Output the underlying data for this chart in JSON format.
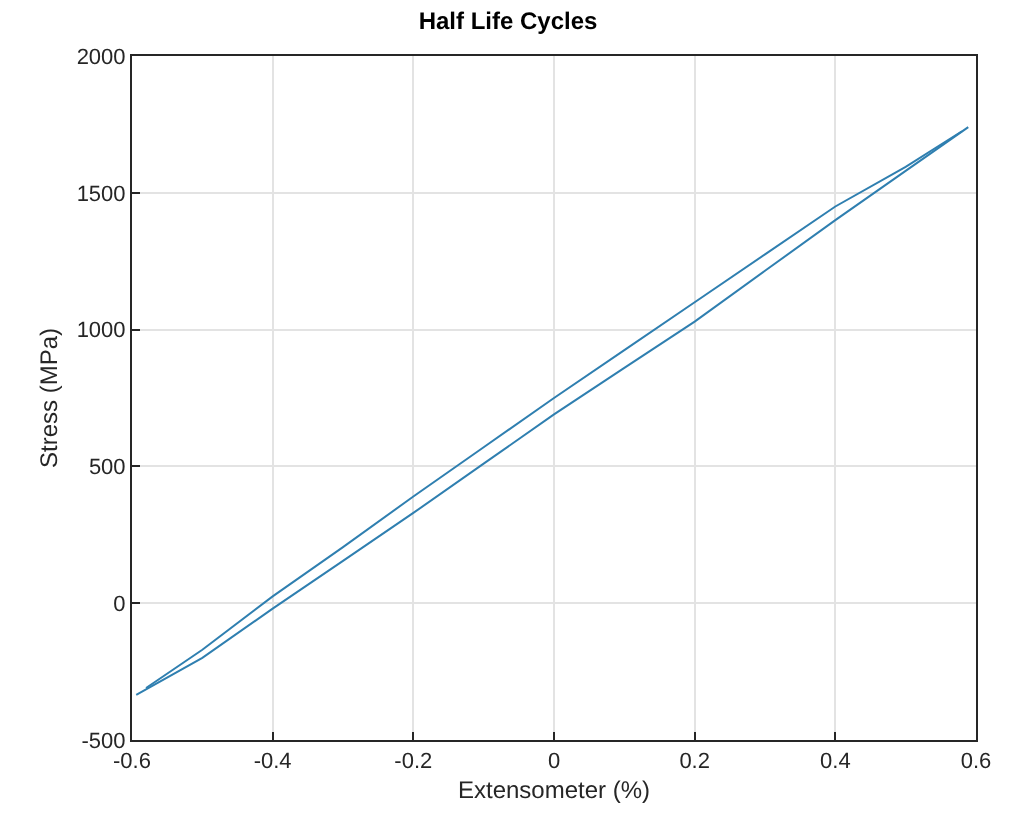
{
  "chart_data": {
    "type": "line",
    "title": "Half Life Cycles",
    "xlabel": "Extensometer (%)",
    "ylabel": "Stress (MPa)",
    "series": [
      {
        "color": "#2f7fb0",
        "x": [
          -0.594,
          -0.5,
          -0.4,
          -0.3,
          -0.2,
          -0.1,
          0,
          0.1,
          0.2,
          0.3,
          0.4,
          0.5,
          0.589
        ],
        "values": [
          -335,
          -200,
          -20,
          155,
          330,
          510,
          690,
          860,
          1029,
          1215,
          1400,
          1580,
          1740
        ]
      },
      {
        "color": "#2f7fb0",
        "x": [
          -0.58,
          -0.5,
          -0.4,
          -0.3,
          -0.2,
          -0.1,
          0,
          0.1,
          0.2,
          0.3,
          0.4,
          0.5,
          0.58
        ],
        "values": [
          -310,
          -170,
          25,
          205,
          390,
          570,
          750,
          925,
          1100,
          1275,
          1450,
          1595,
          1725
        ]
      }
    ],
    "xlim": [
      -0.6,
      0.6
    ],
    "ylim": [
      -500,
      2000
    ],
    "xticks": [
      -0.6,
      -0.4,
      -0.2,
      0,
      0.2,
      0.4,
      0.6
    ],
    "yticks": [
      -500,
      0,
      500,
      1000,
      1500,
      2000
    ],
    "grid": true,
    "legend": false,
    "marker": "none",
    "line_style": "solid"
  }
}
